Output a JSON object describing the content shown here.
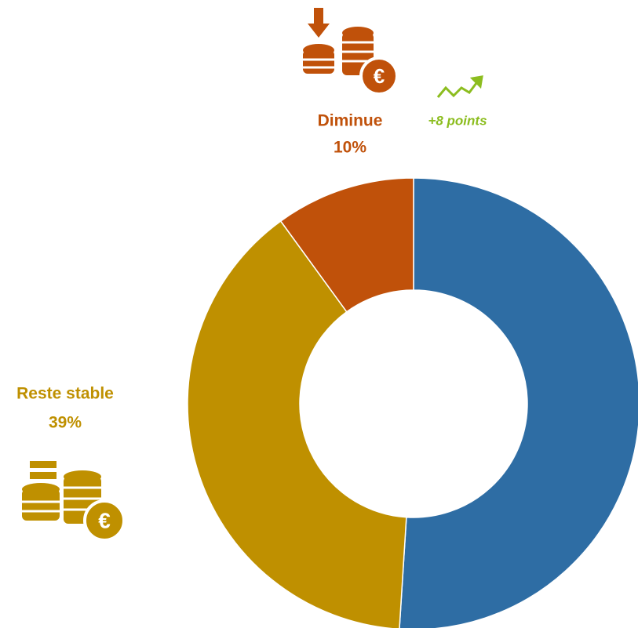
{
  "chart_data": {
    "type": "donut",
    "categories": [
      null,
      "Reste stable",
      "Diminue"
    ],
    "values": [
      51,
      39,
      10
    ],
    "value_labels": [
      null,
      "39%",
      "10%"
    ],
    "colors": [
      "#2e6da4",
      "#bf9000",
      "#c0510a"
    ],
    "annotation": "+8 points"
  }
}
